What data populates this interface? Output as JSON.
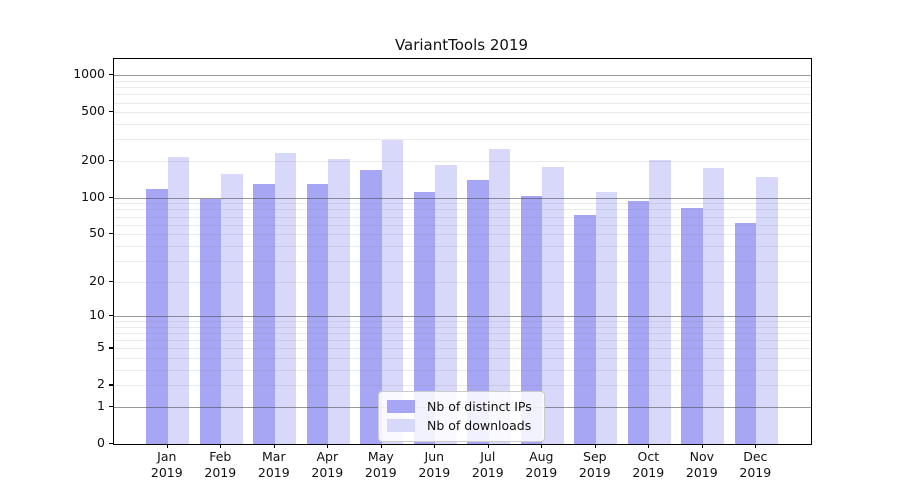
{
  "chart_data": {
    "type": "bar",
    "title": "VariantTools 2019",
    "categories": [
      "Jan",
      "Feb",
      "Mar",
      "Apr",
      "May",
      "Jun",
      "Jul",
      "Aug",
      "Sep",
      "Oct",
      "Nov",
      "Dec"
    ],
    "year_label": "2019",
    "series": [
      {
        "name": "Nb of distinct IPs",
        "color": "#a6a6f5",
        "values": [
          118,
          98,
          130,
          130,
          170,
          112,
          140,
          103,
          72,
          94,
          83,
          62
        ]
      },
      {
        "name": "Nb of downloads",
        "color": "#d8d8fa",
        "values": [
          217,
          157,
          234,
          208,
          295,
          186,
          250,
          177,
          111,
          203,
          174,
          149
        ]
      }
    ],
    "xlabel": "",
    "ylabel": "",
    "yscale": "log1p",
    "yticks": [
      0,
      1,
      2,
      5,
      10,
      20,
      50,
      100,
      200,
      500,
      1000
    ],
    "ylim": [
      0,
      1357
    ],
    "grid": "horizontal: major lines at 1,10,100,1000; faint minor lines at 2-9 multiples of each decade",
    "legend_position": "lower center inside plot"
  }
}
